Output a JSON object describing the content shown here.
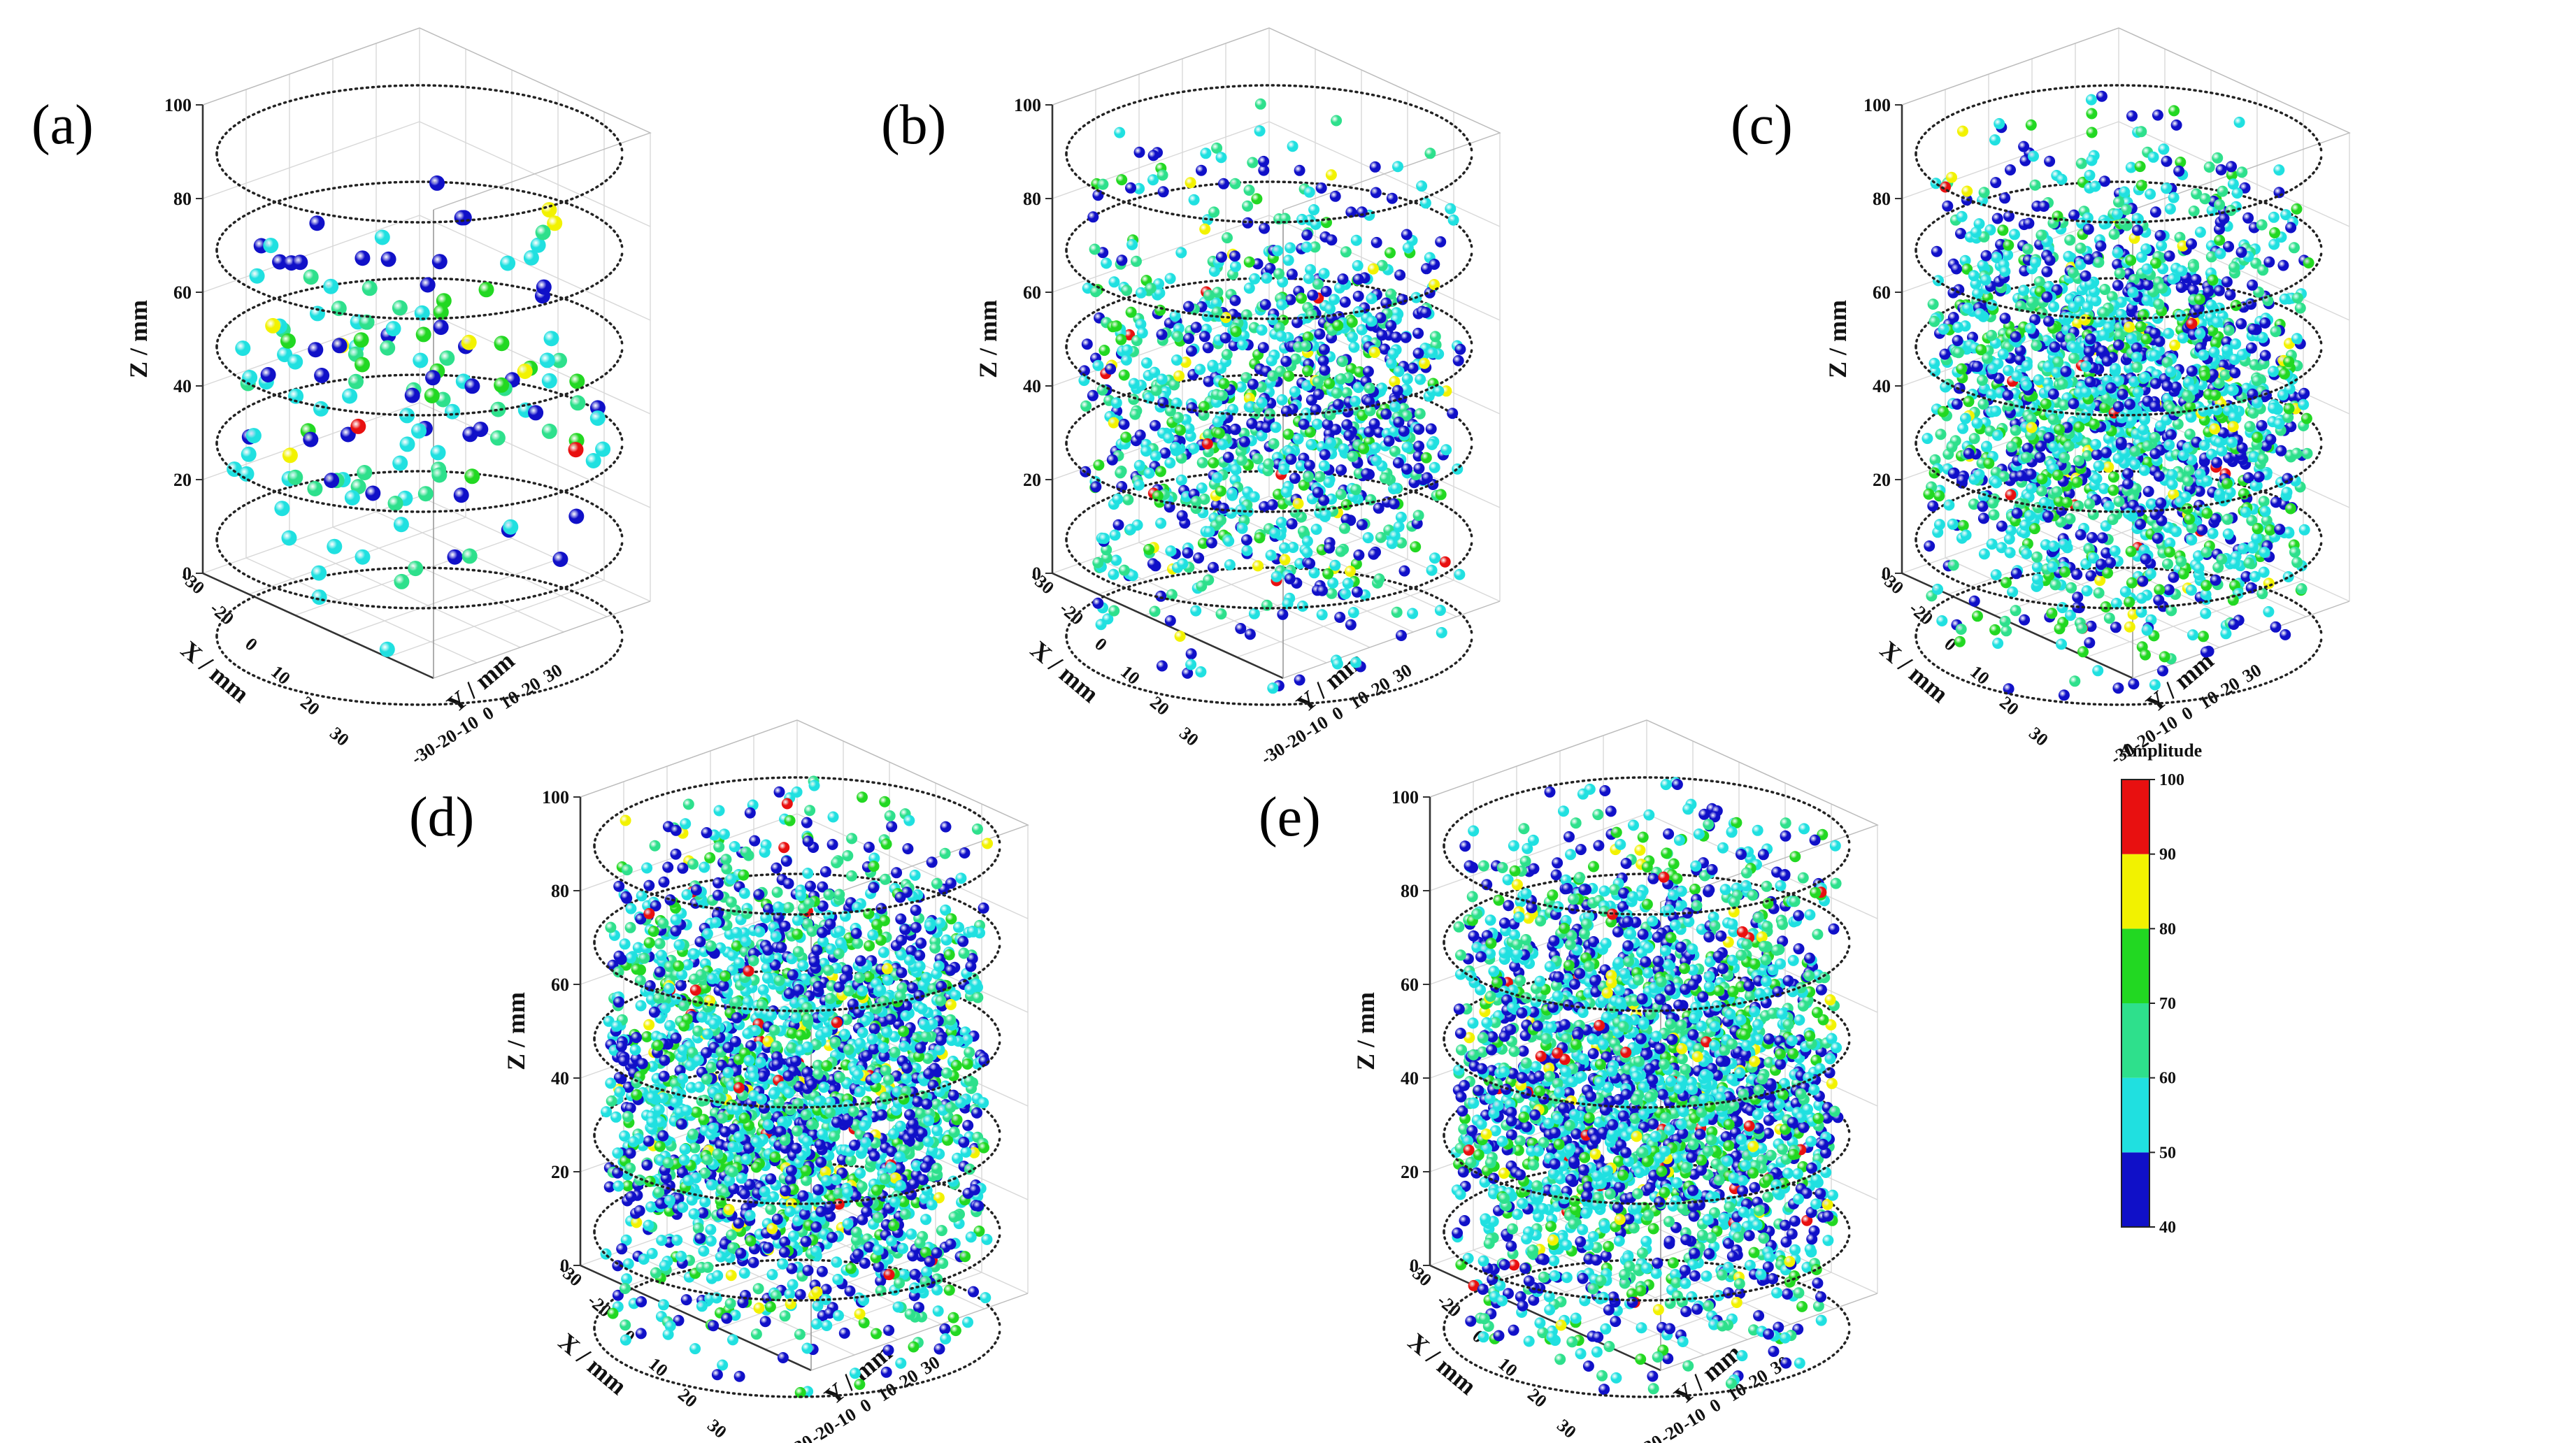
{
  "figure": {
    "description_free": true
  },
  "colors": {
    "band_40_50": "#1010c8",
    "band_50_60": "#20e0e0",
    "band_60_70": "#2ee08c",
    "band_70_80": "#22d822",
    "band_80_90": "#f2f200",
    "band_90_100": "#e81010",
    "axis": "#444444",
    "grid": "#d8d8d8",
    "ring": "#222222"
  },
  "colorbar": {
    "title": "Amplitude",
    "bands": [
      {
        "from": 40,
        "to": 50,
        "color": "#1010c8"
      },
      {
        "from": 50,
        "to": 60,
        "color": "#20e0e0"
      },
      {
        "from": 60,
        "to": 70,
        "color": "#2ee08c"
      },
      {
        "from": 70,
        "to": 80,
        "color": "#22d822"
      },
      {
        "from": 80,
        "to": 90,
        "color": "#f2f200"
      },
      {
        "from": 90,
        "to": 100,
        "color": "#e81010"
      }
    ],
    "tick_labels": [
      "40",
      "50",
      "60",
      "70",
      "80",
      "90",
      "100"
    ]
  },
  "chart_data": [
    {
      "type": "scatter",
      "panel": "(a)",
      "zlabel": "Z / mm",
      "xlabel": "X / mm",
      "ylabel": "Y / mm",
      "zlim": [
        0,
        100
      ],
      "xlim": [
        -30,
        30
      ],
      "ylim": [
        -30,
        30
      ],
      "z_ticks": [
        "0",
        "20",
        "40",
        "60",
        "80",
        "100"
      ],
      "x_ticks": [
        "-30",
        "-20",
        "0",
        "10",
        "20",
        "30"
      ],
      "y_ticks": [
        "-30",
        "-20",
        "-10",
        "0",
        "10",
        "20",
        "30"
      ],
      "ring_heights": [
        0,
        20,
        40,
        60,
        80,
        100
      ],
      "event_count": 150,
      "z_range_events": [
        15,
        85
      ],
      "amplitude_range": [
        40,
        100
      ],
      "seed": 11
    },
    {
      "type": "scatter",
      "panel": "(b)",
      "zlabel": "Z / mm",
      "xlabel": "X / mm",
      "ylabel": "Y / mm",
      "zlim": [
        0,
        100
      ],
      "xlim": [
        -30,
        30
      ],
      "ylim": [
        -30,
        30
      ],
      "z_ticks": [
        "0",
        "20",
        "40",
        "60",
        "80",
        "100"
      ],
      "x_ticks": [
        "-30",
        "-20",
        "0",
        "10",
        "20",
        "30"
      ],
      "y_ticks": [
        "-30",
        "-20",
        "-10",
        "0",
        "10",
        "20",
        "30"
      ],
      "ring_heights": [
        0,
        20,
        40,
        60,
        80,
        100
      ],
      "event_count": 1100,
      "z_range_events": [
        8,
        90
      ],
      "amplitude_range": [
        40,
        100
      ],
      "seed": 23
    },
    {
      "type": "scatter",
      "panel": "(c)",
      "zlabel": "Z / mm",
      "xlabel": "X / mm",
      "ylabel": "Y / mm",
      "zlim": [
        0,
        100
      ],
      "xlim": [
        -30,
        30
      ],
      "ylim": [
        -30,
        30
      ],
      "z_ticks": [
        "0",
        "20",
        "40",
        "60",
        "80",
        "100"
      ],
      "x_ticks": [
        "-30",
        "-20",
        "0",
        "10",
        "20",
        "30"
      ],
      "y_ticks": [
        "-30",
        "-20",
        "-10",
        "0",
        "10",
        "20",
        "30"
      ],
      "ring_heights": [
        0,
        20,
        40,
        60,
        80,
        100
      ],
      "event_count": 1900,
      "z_range_events": [
        8,
        92
      ],
      "amplitude_range": [
        40,
        100
      ],
      "seed": 37
    },
    {
      "type": "scatter",
      "panel": "(d)",
      "zlabel": "Z / mm",
      "xlabel": "X / mm",
      "ylabel": "Y / mm",
      "zlim": [
        0,
        100
      ],
      "xlim": [
        -30,
        30
      ],
      "ylim": [
        -30,
        30
      ],
      "z_ticks": [
        "0",
        "20",
        "40",
        "60",
        "80",
        "100"
      ],
      "x_ticks": [
        "-30",
        "-20",
        "0",
        "10",
        "20",
        "30"
      ],
      "y_ticks": [
        "-30",
        "-20",
        "-10",
        "0",
        "10",
        "20",
        "30"
      ],
      "ring_heights": [
        0,
        20,
        40,
        60,
        80,
        100
      ],
      "event_count": 2400,
      "z_range_events": [
        5,
        95
      ],
      "amplitude_range": [
        40,
        100
      ],
      "seed": 51
    },
    {
      "type": "scatter",
      "panel": "(e)",
      "zlabel": "Z / mm",
      "xlabel": "X / mm",
      "ylabel": "Y / mm",
      "zlim": [
        0,
        100
      ],
      "xlim": [
        -30,
        30
      ],
      "ylim": [
        -30,
        30
      ],
      "z_ticks": [
        "0",
        "20",
        "40",
        "60",
        "80",
        "100"
      ],
      "x_ticks": [
        "-30",
        "-20",
        "0",
        "10",
        "20",
        "30"
      ],
      "y_ticks": [
        "-30",
        "-20",
        "-10",
        "0",
        "10",
        "20",
        "30"
      ],
      "ring_heights": [
        0,
        20,
        40,
        60,
        80,
        100
      ],
      "event_count": 2500,
      "z_range_events": [
        5,
        95
      ],
      "amplitude_range": [
        40,
        100
      ],
      "seed": 67
    }
  ]
}
